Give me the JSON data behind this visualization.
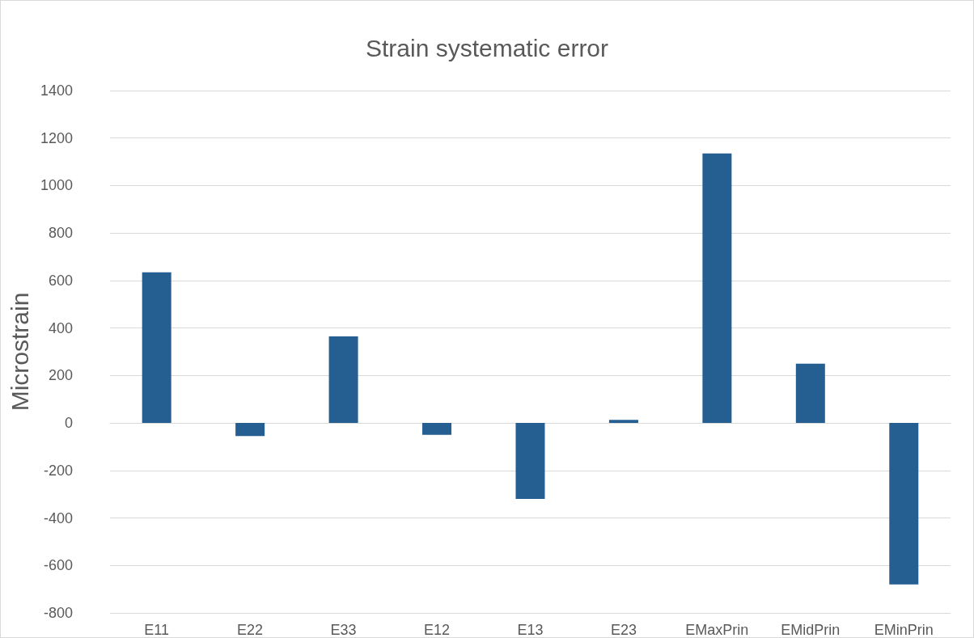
{
  "chart_data": {
    "type": "bar",
    "title": "Strain systematic error",
    "ylabel": "Microstrain",
    "categories": [
      "E11",
      "E22",
      "E33",
      "E12",
      "E13",
      "E23",
      "EMaxPrin",
      "EMidPrin",
      "EMinPrin"
    ],
    "values": [
      635,
      -55,
      365,
      -50,
      -320,
      13,
      1135,
      250,
      -680
    ],
    "color": "#255e91",
    "ylim": [
      -800,
      1400
    ],
    "yticks": [
      -800,
      -600,
      -400,
      -200,
      0,
      200,
      400,
      600,
      800,
      1000,
      1200,
      1400
    ],
    "grid": "y"
  }
}
